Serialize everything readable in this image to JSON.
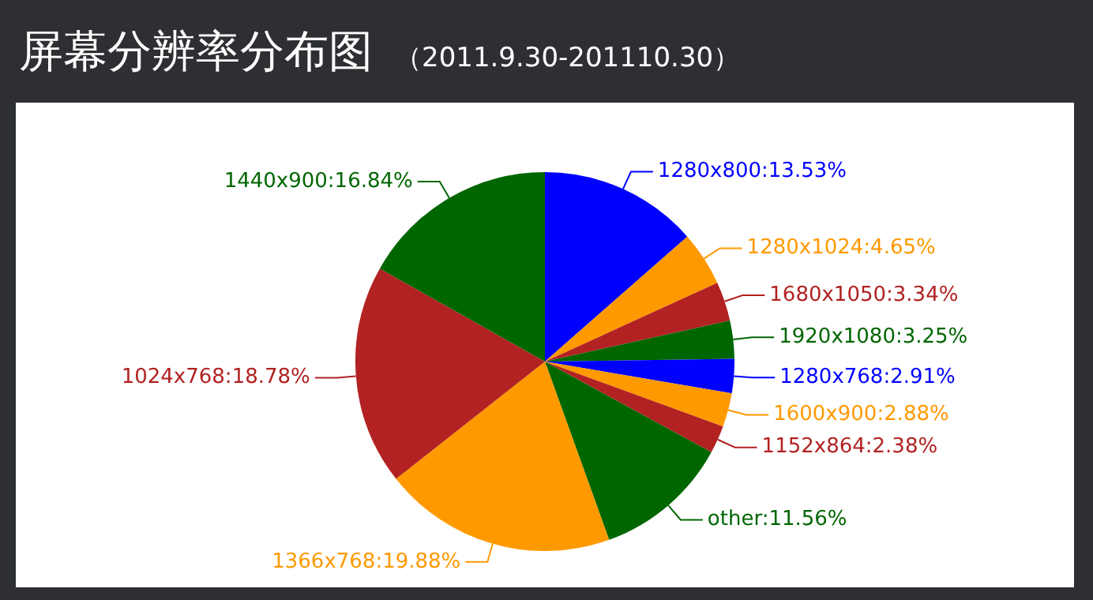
{
  "chart_data": {
    "type": "pie",
    "title": "屏幕分辨率分布图",
    "subtitle": "（2011.9.30-201110.30）",
    "categories": [
      "1280x800",
      "1280x1024",
      "1680x1050",
      "1920x1080",
      "1280x768",
      "1600x900",
      "1152x864",
      "other",
      "1366x768",
      "1024x768",
      "1440x900"
    ],
    "values": [
      13.53,
      4.65,
      3.34,
      3.25,
      2.91,
      2.88,
      2.38,
      11.56,
      19.88,
      18.78,
      16.84
    ],
    "value_labels": [
      "13.53%",
      "4.65%",
      "3.34%",
      "3.25%",
      "2.91%",
      "2.88%",
      "2.38%",
      "11.56%",
      "19.88%",
      "18.78%",
      "16.84%"
    ],
    "colors": [
      "#0000ff",
      "#ff9900",
      "#b22222",
      "#006600",
      "#0000ff",
      "#ff9900",
      "#b22222",
      "#006600",
      "#ff9900",
      "#b22222",
      "#006600"
    ],
    "legend": false
  }
}
